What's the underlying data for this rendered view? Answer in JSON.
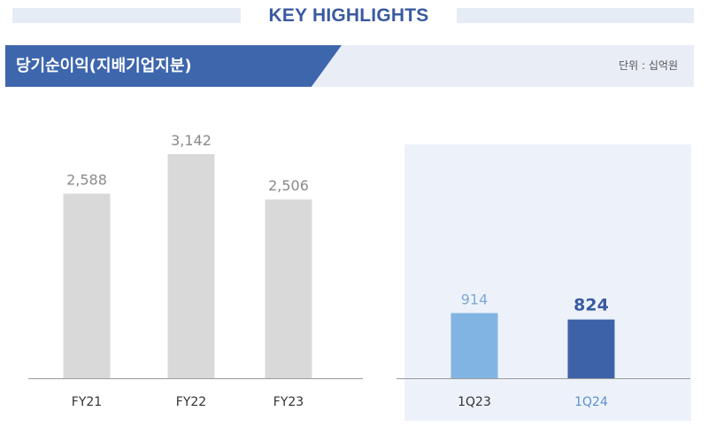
{
  "header": {
    "title": "KEY HIGHLIGHTS"
  },
  "section": {
    "title": "당기순이익(지배기업지분)",
    "unit": "단위 : 십억원"
  },
  "colors": {
    "title_blue": "#3a5aa0",
    "tab_blue": "#3d66ad",
    "annual_bar": "#d9d9d9",
    "q1_prev_bar": "#82b4e3",
    "q1_curr_bar": "#3d62a8",
    "highlight_panel": "#edf2fa"
  },
  "chart_data": [
    {
      "type": "bar",
      "categories": [
        "FY21",
        "FY22",
        "FY23"
      ],
      "values": [
        2588,
        3142,
        2506
      ],
      "value_labels": [
        "2,588",
        "3,142",
        "2,506"
      ],
      "title": "",
      "xlabel": "",
      "ylabel": "",
      "grid": false
    },
    {
      "type": "bar",
      "categories": [
        "1Q23",
        "1Q24"
      ],
      "values": [
        914,
        824
      ],
      "value_labels": [
        "914",
        "824"
      ],
      "title": "",
      "xlabel": "",
      "ylabel": "",
      "grid": false,
      "highlighted_category": "1Q24"
    }
  ]
}
